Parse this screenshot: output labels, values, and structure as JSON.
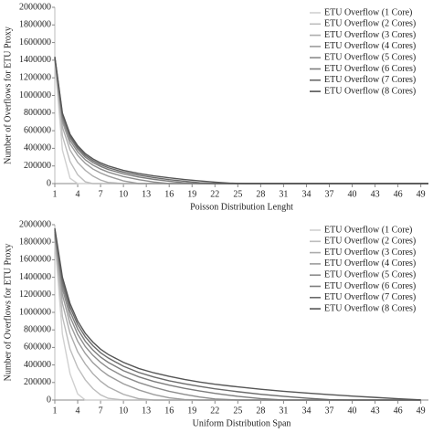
{
  "chart_data": [
    {
      "type": "line",
      "xlabel": "Poisson Distribution Lenght",
      "ylabel": "Number of Overflows for ETU Proxy",
      "legend": "upper right",
      "grid": false,
      "xlim": [
        1,
        50
      ],
      "xticks": [
        1,
        4,
        7,
        10,
        13,
        16,
        19,
        22,
        25,
        28,
        31,
        34,
        37,
        40,
        43,
        46,
        49
      ],
      "ylim": [
        0,
        2000000
      ],
      "yticks": [
        0,
        200000,
        400000,
        600000,
        800000,
        1000000,
        1200000,
        1400000,
        1600000,
        1800000,
        2000000
      ],
      "x": [
        1,
        2,
        3,
        4,
        5,
        6,
        7,
        8,
        10,
        12,
        14,
        16,
        18,
        20,
        22,
        24,
        26,
        30,
        40,
        50
      ],
      "series": [
        {
          "name": "ETU Overflow (1 Core)",
          "color": "#d0d0d0",
          "values": [
            1380000,
            380000,
            60000,
            0,
            0,
            0,
            0,
            0,
            0,
            0,
            0,
            0,
            0,
            0,
            0,
            0,
            0,
            0,
            0,
            0
          ]
        },
        {
          "name": "ETU Overflow (2 Cores)",
          "color": "#bdbdbd",
          "values": [
            1400000,
            540000,
            250000,
            100000,
            20000,
            0,
            0,
            0,
            0,
            0,
            0,
            0,
            0,
            0,
            0,
            0,
            0,
            0,
            0,
            0
          ]
        },
        {
          "name": "ETU Overflow (3 Cores)",
          "color": "#adadad",
          "values": [
            1410000,
            640000,
            380000,
            240000,
            150000,
            85000,
            40000,
            12000,
            0,
            0,
            0,
            0,
            0,
            0,
            0,
            0,
            0,
            0,
            0,
            0
          ]
        },
        {
          "name": "ETU Overflow (4 Cores)",
          "color": "#9c9c9c",
          "values": [
            1420000,
            700000,
            450000,
            320000,
            230000,
            165000,
            120000,
            85000,
            30000,
            0,
            0,
            0,
            0,
            0,
            0,
            0,
            0,
            0,
            0,
            0
          ]
        },
        {
          "name": "ETU Overflow (5 Cores)",
          "color": "#8c8c8c",
          "values": [
            1420000,
            730000,
            490000,
            360000,
            270000,
            210000,
            165000,
            130000,
            80000,
            45000,
            18000,
            0,
            0,
            0,
            0,
            0,
            0,
            0,
            0,
            0
          ]
        },
        {
          "name": "ETU Overflow (6 Cores)",
          "color": "#7c7c7c",
          "values": [
            1430000,
            760000,
            520000,
            390000,
            300000,
            240000,
            195000,
            160000,
            110000,
            75000,
            48000,
            26000,
            8000,
            0,
            0,
            0,
            0,
            0,
            0,
            0
          ]
        },
        {
          "name": "ETU Overflow (7 Cores)",
          "color": "#6a6a6a",
          "values": [
            1430000,
            780000,
            540000,
            410000,
            320000,
            260000,
            215000,
            180000,
            130000,
            95000,
            68000,
            45000,
            26000,
            10000,
            0,
            0,
            0,
            0,
            0,
            0
          ]
        },
        {
          "name": "ETU Overflow (8 Cores)",
          "color": "#555555",
          "values": [
            1440000,
            800000,
            560000,
            430000,
            340000,
            280000,
            235000,
            200000,
            150000,
            115000,
            88000,
            65000,
            46000,
            30000,
            16000,
            5000,
            0,
            0,
            0,
            0
          ]
        }
      ]
    },
    {
      "type": "line",
      "xlabel": "Uniform Distribution Span",
      "ylabel": "Number of Overflows for ETU Proxy",
      "legend": "upper right",
      "grid": false,
      "xlim": [
        1,
        50
      ],
      "xticks": [
        1,
        4,
        7,
        10,
        13,
        16,
        19,
        22,
        25,
        28,
        31,
        34,
        37,
        40,
        43,
        46,
        49
      ],
      "ylim": [
        0,
        2000000
      ],
      "yticks": [
        0,
        200000,
        400000,
        600000,
        800000,
        1000000,
        1200000,
        1400000,
        1600000,
        1800000,
        2000000
      ],
      "x": [
        1,
        2,
        3,
        4,
        5,
        6,
        7,
        8,
        10,
        12,
        14,
        16,
        18,
        20,
        22,
        25,
        28,
        31,
        34,
        37,
        40,
        43,
        46,
        49
      ],
      "series": [
        {
          "name": "ETU Overflow (1 Core)",
          "color": "#d0d0d0",
          "values": [
            1820000,
            750000,
            300000,
            70000,
            0,
            0,
            0,
            0,
            0,
            0,
            0,
            0,
            0,
            0,
            0,
            0,
            0,
            0,
            0,
            0,
            0,
            0,
            0,
            0
          ]
        },
        {
          "name": "ETU Overflow (2 Cores)",
          "color": "#bdbdbd",
          "values": [
            1840000,
            950000,
            580000,
            370000,
            230000,
            130000,
            60000,
            20000,
            0,
            0,
            0,
            0,
            0,
            0,
            0,
            0,
            0,
            0,
            0,
            0,
            0,
            0,
            0,
            0
          ]
        },
        {
          "name": "ETU Overflow (3 Cores)",
          "color": "#adadad",
          "values": [
            1860000,
            1100000,
            760000,
            550000,
            410000,
            300000,
            215000,
            150000,
            65000,
            15000,
            0,
            0,
            0,
            0,
            0,
            0,
            0,
            0,
            0,
            0,
            0,
            0,
            0,
            0
          ]
        },
        {
          "name": "ETU Overflow (4 Cores)",
          "color": "#9c9c9c",
          "values": [
            1880000,
            1200000,
            870000,
            670000,
            530000,
            425000,
            345000,
            280000,
            185000,
            115000,
            62000,
            25000,
            6000,
            0,
            0,
            0,
            0,
            0,
            0,
            0,
            0,
            0,
            0,
            0
          ]
        },
        {
          "name": "ETU Overflow (5 Cores)",
          "color": "#8c8c8c",
          "values": [
            1900000,
            1270000,
            950000,
            750000,
            610000,
            510000,
            430000,
            365000,
            270000,
            200000,
            145000,
            100000,
            64000,
            34000,
            12000,
            0,
            0,
            0,
            0,
            0,
            0,
            0,
            0,
            0
          ]
        },
        {
          "name": "ETU Overflow (6 Cores)",
          "color": "#7c7c7c",
          "values": [
            1920000,
            1320000,
            1010000,
            810000,
            670000,
            570000,
            490000,
            430000,
            335000,
            265000,
            212000,
            170000,
            134000,
            103000,
            76000,
            42000,
            16000,
            0,
            0,
            0,
            0,
            0,
            0,
            0
          ]
        },
        {
          "name": "ETU Overflow (7 Cores)",
          "color": "#6a6a6a",
          "values": [
            1940000,
            1360000,
            1060000,
            860000,
            720000,
            620000,
            540000,
            480000,
            385000,
            315000,
            262000,
            220000,
            185000,
            155000,
            128000,
            95000,
            66000,
            42000,
            22000,
            4000,
            0,
            0,
            0,
            0
          ]
        },
        {
          "name": "ETU Overflow (8 Cores)",
          "color": "#555555",
          "values": [
            1960000,
            1400000,
            1100000,
            900000,
            760000,
            660000,
            580000,
            520000,
            430000,
            360000,
            310000,
            270000,
            235000,
            205000,
            180000,
            150000,
            123000,
            100000,
            80000,
            62000,
            45000,
            30000,
            15000,
            2000
          ]
        }
      ]
    }
  ]
}
